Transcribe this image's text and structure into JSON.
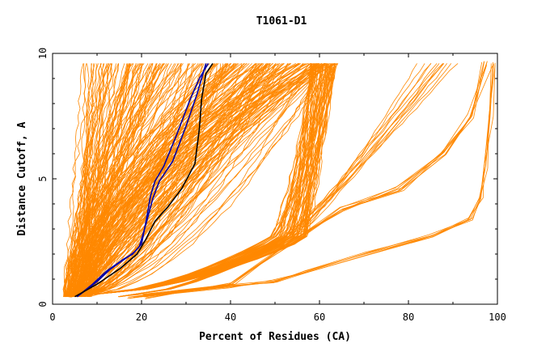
{
  "chart_data": {
    "type": "line",
    "title": "T1061-D1",
    "xlabel": "Percent of Residues (CA)",
    "ylabel": "Distance Cutoff, A",
    "xlim": [
      0,
      100
    ],
    "ylim": [
      0,
      10
    ],
    "x_ticks": [
      0,
      20,
      40,
      60,
      80,
      100
    ],
    "y_ticks": [
      0,
      5,
      10
    ],
    "grid": false,
    "colors": {
      "background_models": "#ff8800",
      "highlight_blue": "#0000aa",
      "highlight_black": "#000000",
      "axes": "#000000"
    },
    "series": [
      {
        "color": "#0000aa",
        "x": [
          5.5,
          10,
          13,
          17,
          18.5,
          20,
          21,
          22,
          23,
          25,
          28,
          31,
          33,
          35
        ],
        "y": [
          0.3,
          0.9,
          1.4,
          1.9,
          2.1,
          2.4,
          3.3,
          4.3,
          4.9,
          5.5,
          6.8,
          8.2,
          9.0,
          9.6
        ]
      },
      {
        "color": "#0000aa",
        "x": [
          5.5,
          9,
          12,
          16,
          18,
          19.5,
          21,
          22.5,
          24,
          27,
          30,
          32.5,
          34.5
        ],
        "y": [
          0.3,
          0.8,
          1.3,
          1.8,
          2.0,
          2.3,
          3.2,
          4.2,
          4.9,
          5.7,
          7.1,
          8.4,
          9.6
        ]
      },
      {
        "color": "#000000",
        "x": [
          5,
          10,
          15,
          19,
          21,
          23,
          26,
          29,
          32,
          33,
          33.5,
          34.5,
          36
        ],
        "y": [
          0.3,
          0.8,
          1.4,
          2.0,
          2.6,
          3.3,
          3.9,
          4.6,
          5.6,
          7.0,
          8.2,
          9.2,
          9.6
        ]
      }
    ]
  }
}
